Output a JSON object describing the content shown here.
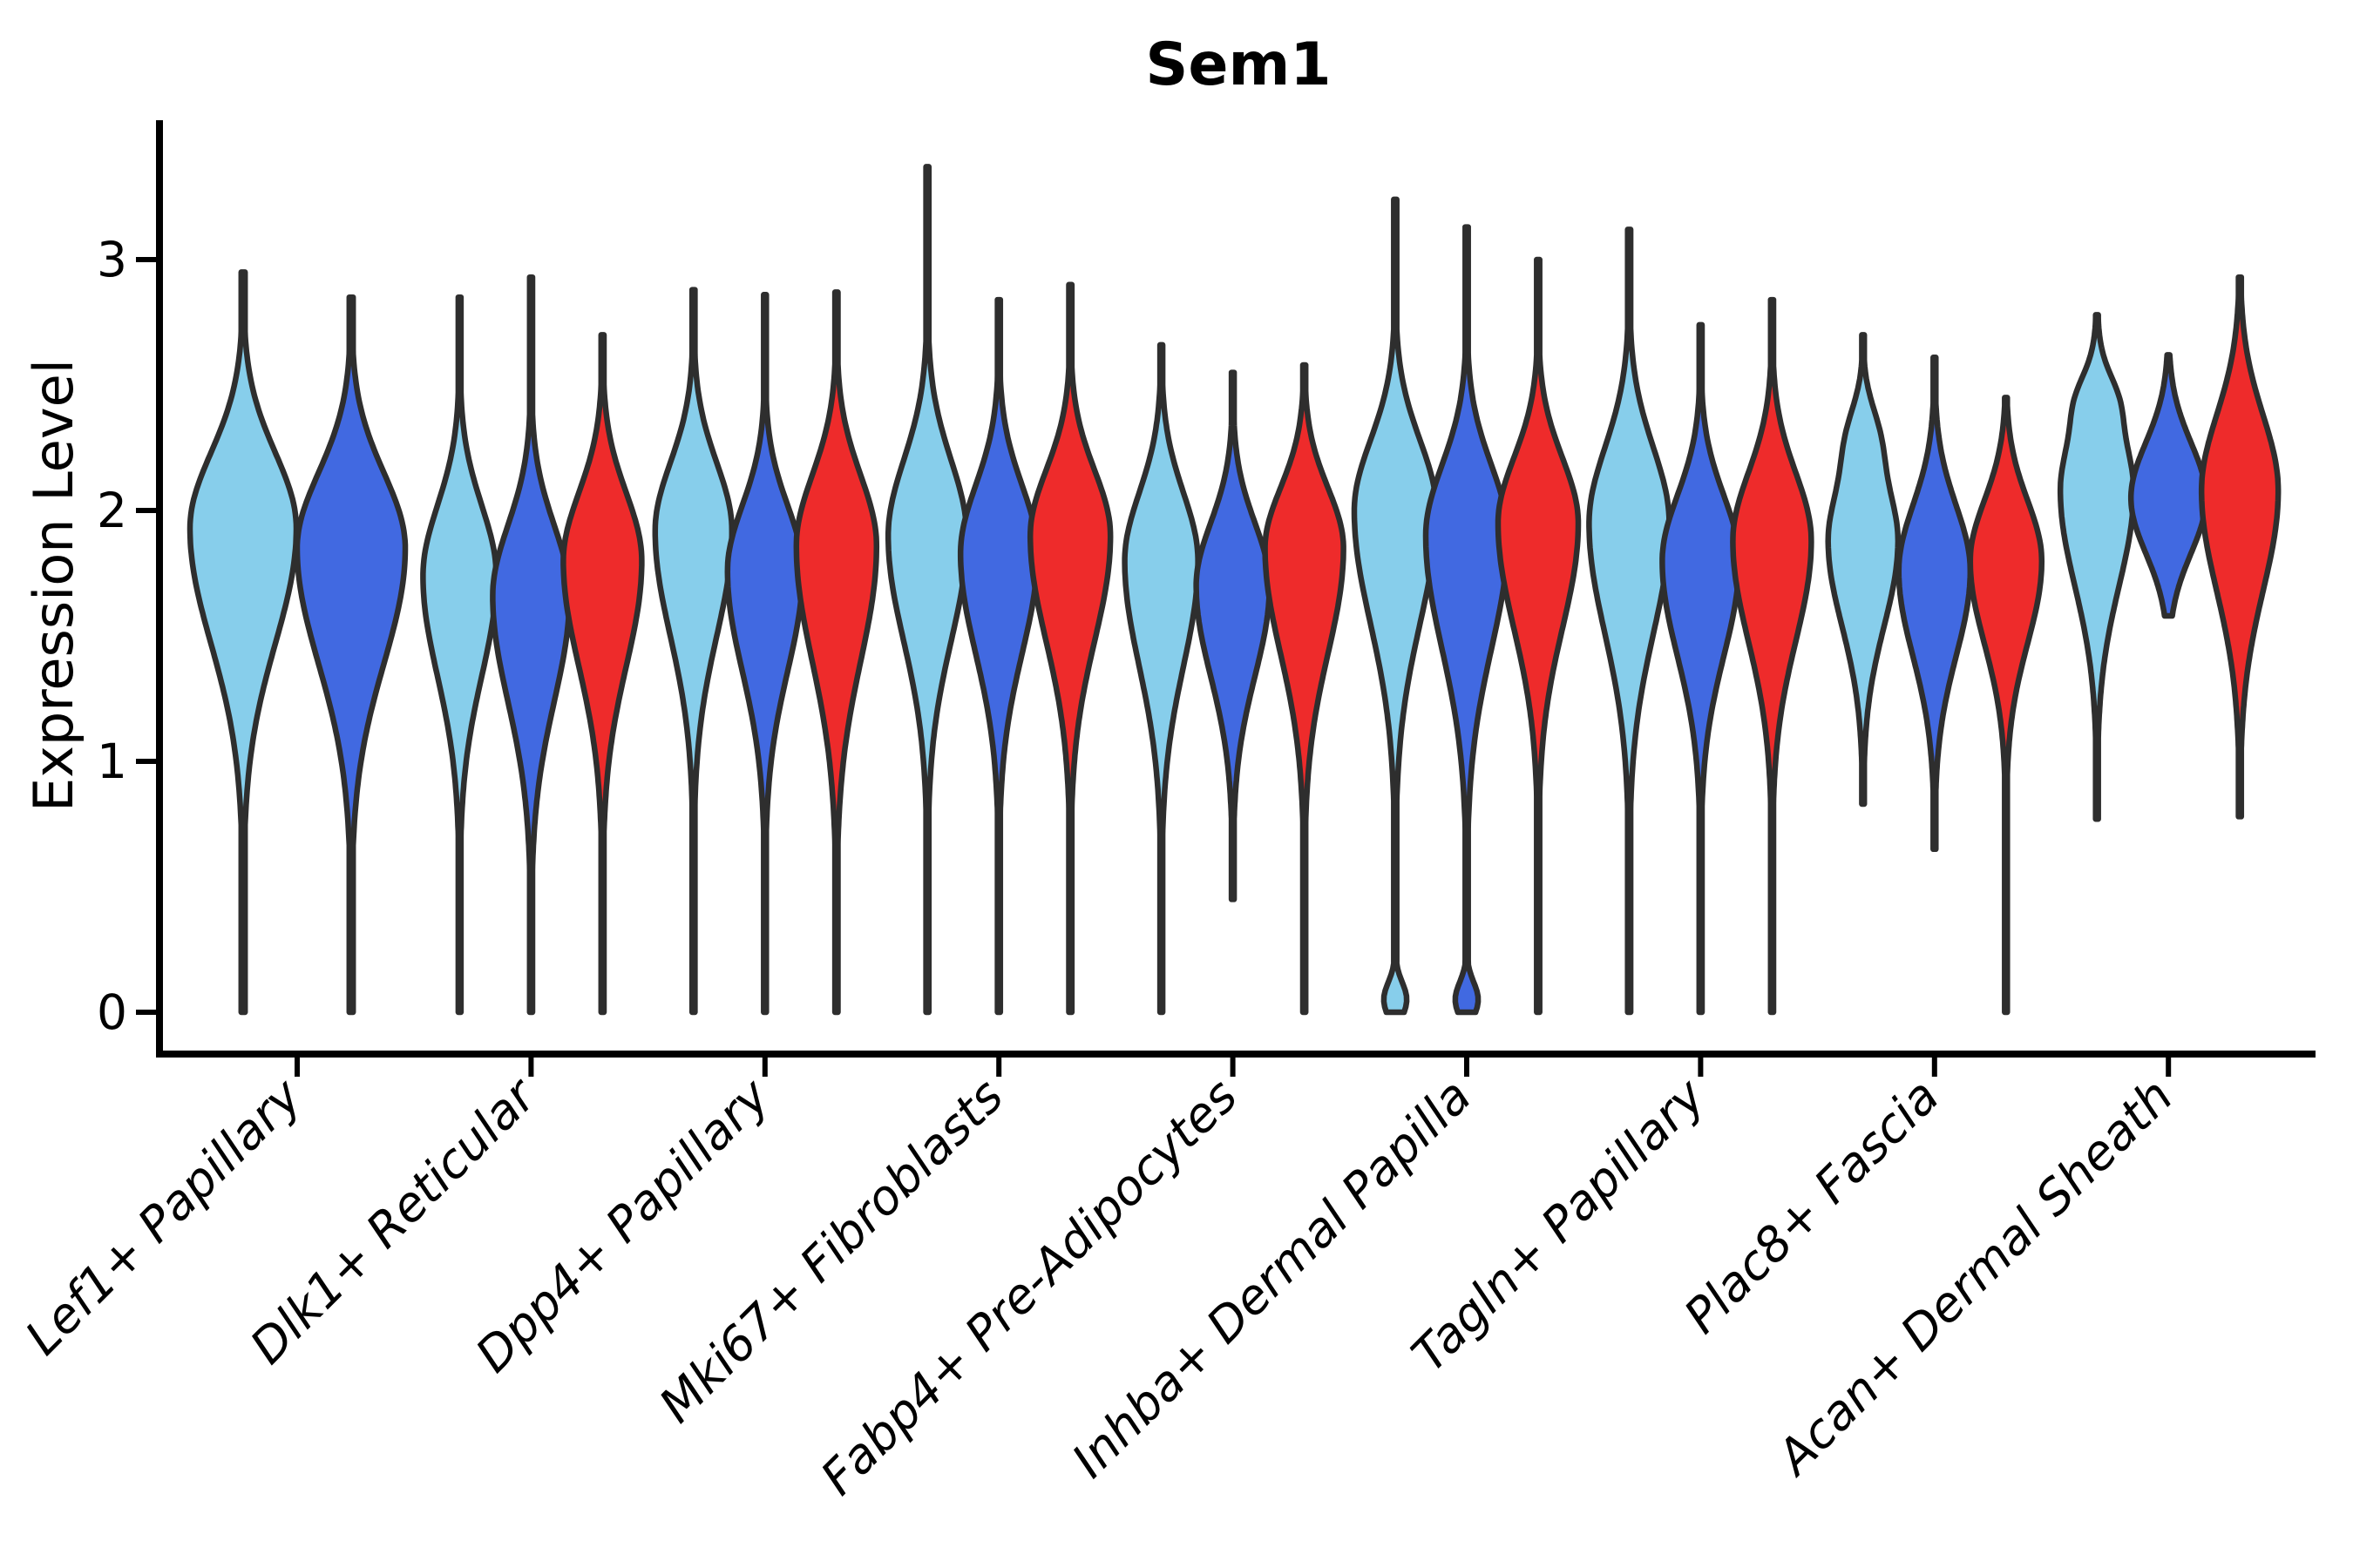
{
  "figure": {
    "background": "#ffffff"
  },
  "chart_data": {
    "type": "violin",
    "title": "Sem1",
    "xlabel": "",
    "ylabel": "Expression Level",
    "grid": false,
    "legend": null,
    "ylim": [
      -0.17,
      3.55
    ],
    "yticks": [
      "0",
      "1",
      "2",
      "3"
    ],
    "ytick_values": [
      0,
      1,
      2,
      3
    ],
    "categories": [
      "Lef1+ Papillary",
      "Dlk1+ Reticular",
      "Dpp4+ Papillary",
      "Mki67+ Fibroblasts",
      "Fabp4+ Pre-Adipocytes",
      "Inhba+ Dermal Papilla",
      "Tagln+ Papillary",
      "Plac8+ Fascia",
      "Acan+ Dermal Sheath"
    ],
    "palette": {
      "light_blue": "#87CEEB",
      "dark_blue": "#4169E1",
      "red": "#EE2B2B",
      "outline": "#2E2E2E"
    },
    "groups": [
      {
        "category": "Lef1+ Papillary",
        "violins": [
          {
            "color": "light_blue",
            "min": 0,
            "peak": 1.93,
            "max": 2.95,
            "rel_width": 61,
            "spread_up": 0.3,
            "spread_down": 0.46,
            "foot_bump": false,
            "shoulder_bump": null
          },
          {
            "color": "dark_blue",
            "min": 0,
            "peak": 1.85,
            "max": 2.85,
            "rel_width": 62,
            "spread_up": 0.3,
            "spread_down": 0.46,
            "foot_bump": false,
            "shoulder_bump": null
          }
        ]
      },
      {
        "category": "Dlk1+ Reticular",
        "violins": [
          {
            "color": "light_blue",
            "min": 0,
            "peak": 1.74,
            "max": 2.85,
            "rel_width": 42,
            "spread_up": 0.28,
            "spread_down": 0.4,
            "foot_bump": false,
            "shoulder_bump": null
          },
          {
            "color": "dark_blue",
            "min": 0,
            "peak": 1.66,
            "max": 2.93,
            "rel_width": 44,
            "spread_up": 0.28,
            "spread_down": 0.42,
            "foot_bump": false,
            "shoulder_bump": null
          },
          {
            "color": "red",
            "min": 0,
            "peak": 1.8,
            "max": 2.7,
            "rel_width": 45,
            "spread_up": 0.27,
            "spread_down": 0.42,
            "foot_bump": false,
            "shoulder_bump": null
          }
        ]
      },
      {
        "category": "Dpp4+ Papillary",
        "violins": [
          {
            "color": "light_blue",
            "min": 0,
            "peak": 1.92,
            "max": 2.88,
            "rel_width": 44,
            "spread_up": 0.27,
            "spread_down": 0.42,
            "foot_bump": false,
            "shoulder_bump": null
          },
          {
            "color": "dark_blue",
            "min": 0,
            "peak": 1.76,
            "max": 2.86,
            "rel_width": 43,
            "spread_up": 0.26,
            "spread_down": 0.4,
            "foot_bump": false,
            "shoulder_bump": null
          },
          {
            "color": "red",
            "min": 0,
            "peak": 1.86,
            "max": 2.87,
            "rel_width": 46,
            "spread_up": 0.28,
            "spread_down": 0.46,
            "foot_bump": false,
            "shoulder_bump": null
          }
        ]
      },
      {
        "category": "Mki67+ Fibroblasts",
        "violins": [
          {
            "color": "light_blue",
            "min": 0,
            "peak": 1.9,
            "max": 3.37,
            "rel_width": 45,
            "spread_up": 0.3,
            "spread_down": 0.42,
            "foot_bump": false,
            "shoulder_bump": null
          },
          {
            "color": "dark_blue",
            "min": 0,
            "peak": 1.83,
            "max": 2.84,
            "rel_width": 44,
            "spread_up": 0.27,
            "spread_down": 0.4,
            "foot_bump": false,
            "shoulder_bump": null
          },
          {
            "color": "red",
            "min": 0,
            "peak": 1.9,
            "max": 2.9,
            "rel_width": 46,
            "spread_up": 0.26,
            "spread_down": 0.42,
            "foot_bump": false,
            "shoulder_bump": null
          }
        ]
      },
      {
        "category": "Fabp4+ Pre-Adipocytes",
        "violins": [
          {
            "color": "light_blue",
            "min": 0,
            "peak": 1.8,
            "max": 2.66,
            "rel_width": 42,
            "spread_up": 0.27,
            "spread_down": 0.42,
            "foot_bump": false,
            "shoulder_bump": null
          },
          {
            "color": "dark_blue",
            "min": 0.45,
            "peak": 1.7,
            "max": 2.55,
            "rel_width": 42,
            "spread_up": 0.25,
            "spread_down": 0.36,
            "foot_bump": false,
            "shoulder_bump": null
          },
          {
            "color": "red",
            "min": 0,
            "peak": 1.85,
            "max": 2.58,
            "rel_width": 45,
            "spread_up": 0.24,
            "spread_down": 0.42,
            "foot_bump": false,
            "shoulder_bump": null
          }
        ]
      },
      {
        "category": "Inhba+ Dermal Papilla",
        "violins": [
          {
            "color": "light_blue",
            "min": 0,
            "peak": 2.0,
            "max": 3.24,
            "rel_width": 47,
            "spread_up": 0.28,
            "spread_down": 0.45,
            "foot_bump": true,
            "shoulder_bump": null
          },
          {
            "color": "dark_blue",
            "min": 0,
            "peak": 1.9,
            "max": 3.13,
            "rel_width": 47,
            "spread_up": 0.28,
            "spread_down": 0.45,
            "foot_bump": true,
            "shoulder_bump": null
          },
          {
            "color": "red",
            "min": 0,
            "peak": 1.95,
            "max": 3.0,
            "rel_width": 46,
            "spread_up": 0.26,
            "spread_down": 0.42,
            "foot_bump": false,
            "shoulder_bump": null
          }
        ]
      },
      {
        "category": "Tagln+ Papillary",
        "violins": [
          {
            "color": "light_blue",
            "min": 0,
            "peak": 1.95,
            "max": 3.12,
            "rel_width": 46,
            "spread_up": 0.3,
            "spread_down": 0.44,
            "foot_bump": false,
            "shoulder_bump": null
          },
          {
            "color": "dark_blue",
            "min": 0,
            "peak": 1.8,
            "max": 2.74,
            "rel_width": 44,
            "spread_up": 0.26,
            "spread_down": 0.38,
            "foot_bump": false,
            "shoulder_bump": null
          },
          {
            "color": "red",
            "min": 0,
            "peak": 1.88,
            "max": 2.84,
            "rel_width": 45,
            "spread_up": 0.27,
            "spread_down": 0.4,
            "foot_bump": false,
            "shoulder_bump": null
          }
        ]
      },
      {
        "category": "Plac8+ Fascia",
        "violins": [
          {
            "color": "light_blue",
            "min": 0.83,
            "peak": 1.88,
            "max": 2.7,
            "rel_width": 40,
            "spread_up": 0.24,
            "spread_down": 0.34,
            "foot_bump": false,
            "shoulder_bump": {
              "at": 2.3,
              "width": 0.3,
              "sigma": 0.13
            }
          },
          {
            "color": "dark_blue",
            "min": 0.65,
            "peak": 1.76,
            "max": 2.61,
            "rel_width": 41,
            "spread_up": 0.26,
            "spread_down": 0.34,
            "foot_bump": false,
            "shoulder_bump": null
          },
          {
            "color": "red",
            "min": 0,
            "peak": 1.8,
            "max": 2.45,
            "rel_width": 41,
            "spread_up": 0.24,
            "spread_down": 0.33,
            "foot_bump": false,
            "shoulder_bump": null
          }
        ]
      },
      {
        "category": "Acan+ Dermal Sheath",
        "violins": [
          {
            "color": "light_blue",
            "min": 0.77,
            "peak": 2.08,
            "max": 2.78,
            "rel_width": 42,
            "spread_up": 0.26,
            "spread_down": 0.38,
            "foot_bump": false,
            "shoulder_bump": {
              "at": 2.45,
              "width": 0.25,
              "sigma": 0.1
            }
          },
          {
            "color": "dark_blue",
            "min": 1.58,
            "peak": 2.05,
            "max": 2.62,
            "rel_width": 43,
            "spread_up": 0.22,
            "spread_down": 0.22,
            "foot_bump": false,
            "shoulder_bump": null
          },
          {
            "color": "red",
            "min": 0.78,
            "peak": 2.08,
            "max": 2.93,
            "rel_width": 44,
            "spread_up": 0.3,
            "spread_down": 0.4,
            "foot_bump": false,
            "shoulder_bump": null
          }
        ]
      }
    ]
  }
}
